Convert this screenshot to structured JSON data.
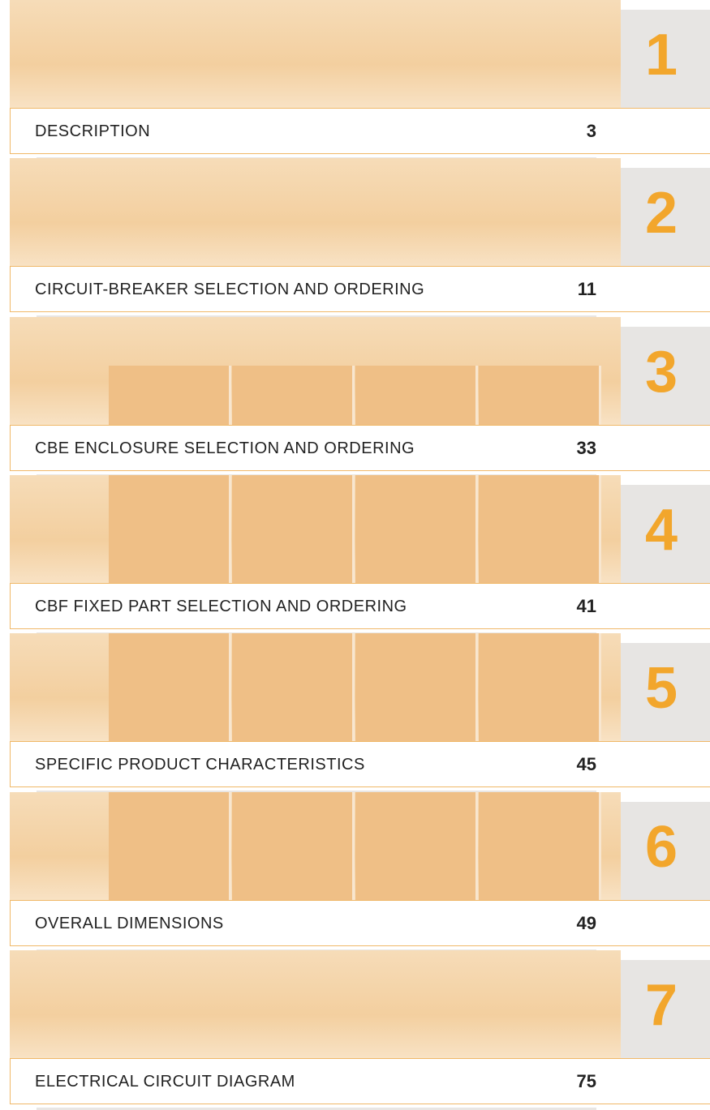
{
  "sections": [
    {
      "number": 1,
      "title": "DESCRIPTION",
      "page": 3
    },
    {
      "number": 2,
      "title": "CIRCUIT-BREAKER SELECTION AND ORDERING",
      "page": 11
    },
    {
      "number": 3,
      "title": "CBE ENCLOSURE SELECTION AND ORDERING",
      "page": 33
    },
    {
      "number": 4,
      "title": "CBF FIXED PART SELECTION AND ORDERING",
      "page": 41
    },
    {
      "number": 5,
      "title": "SPECIFIC PRODUCT CHARACTERISTICS",
      "page": 45
    },
    {
      "number": 6,
      "title": "OVERALL DIMENSIONS",
      "page": 49
    },
    {
      "number": 7,
      "title": "ELECTRICAL CIRCUIT DIAGRAM",
      "page": 75
    }
  ]
}
